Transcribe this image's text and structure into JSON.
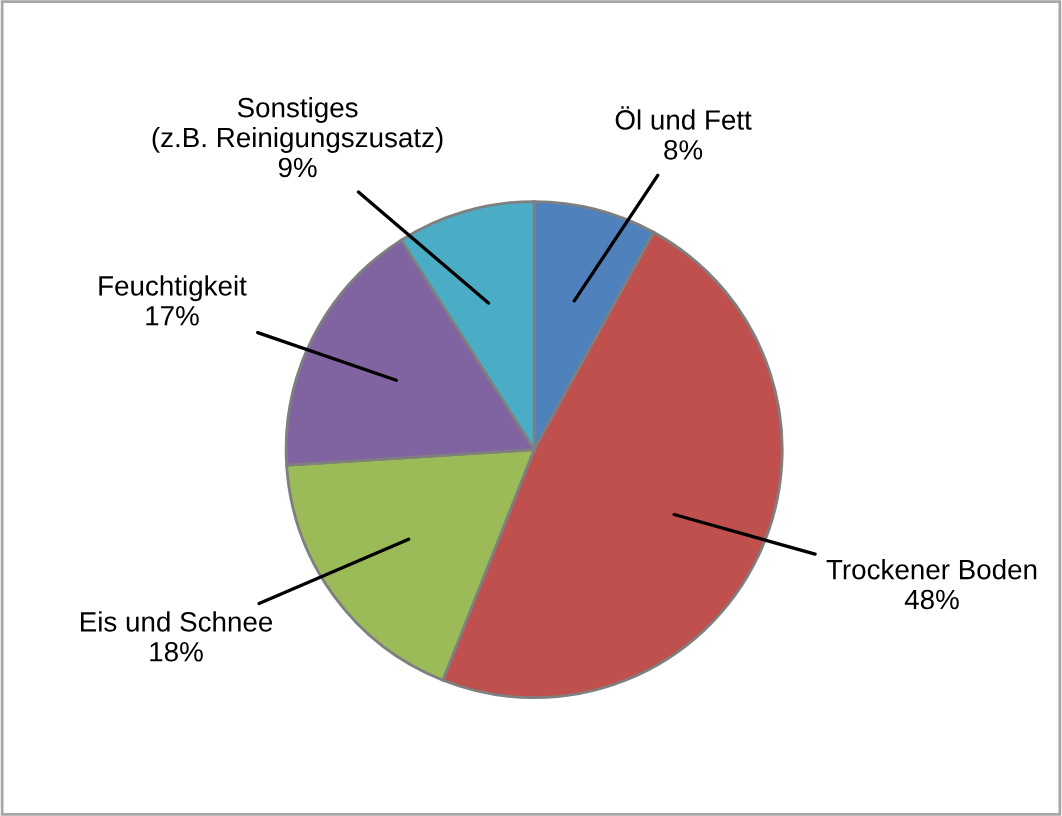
{
  "chart_data": {
    "type": "pie",
    "categories": [
      "Öl und Fett",
      "Trockener Boden",
      "Eis und Schnee",
      "Feuchtigkeit",
      "Sonstiges\n(z.B. Reinigungszusatz)"
    ],
    "values": [
      8,
      48,
      18,
      17,
      9
    ],
    "value_labels": [
      "8%",
      "48%",
      "18%",
      "17%",
      "9%"
    ],
    "colors": [
      "#4f81bd",
      "#c0504d",
      "#9bbb59",
      "#8064a2",
      "#4bacc6"
    ],
    "legend": false
  }
}
